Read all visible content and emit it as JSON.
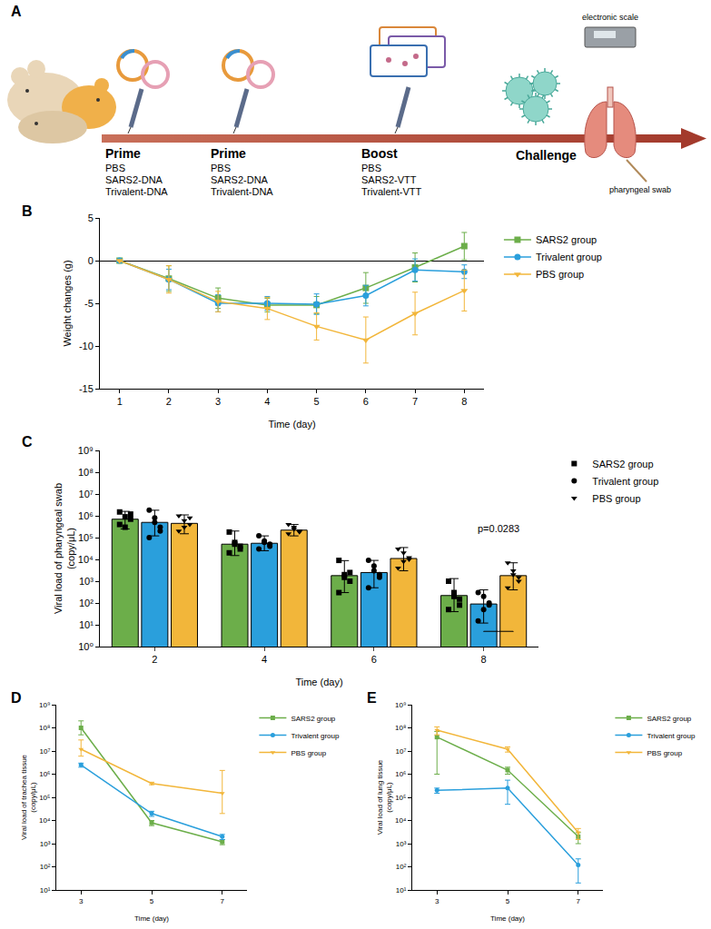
{
  "diagram": {
    "panel": "A",
    "steps": [
      {
        "label": "Prime",
        "groups": [
          "PBS",
          "SARS2-DNA",
          "Trivalent-DNA"
        ]
      },
      {
        "label": "Prime",
        "groups": [
          "PBS",
          "SARS2-DNA",
          "Trivalent-DNA"
        ]
      },
      {
        "label": "Boost",
        "groups": [
          "PBS",
          "SARS2-VTT",
          "Trivalent-VTT"
        ]
      }
    ],
    "challenge": "Challenge",
    "readouts": [
      "electronic scale",
      "pharyngeal swab"
    ]
  },
  "chart_data": [
    {
      "panel": "B",
      "type": "line",
      "x_label": "Time (day)",
      "y_label": "Weight changes (g)",
      "x": [
        1,
        2,
        3,
        4,
        5,
        6,
        7,
        8
      ],
      "xlim": [
        0.6,
        8.4
      ],
      "xticks": [
        1,
        2,
        3,
        4,
        5,
        6,
        7,
        8
      ],
      "ylim": [
        -15,
        5
      ],
      "yticks": [
        -15,
        -10,
        -5,
        0,
        5
      ],
      "grid": false,
      "legend": "right",
      "series": [
        {
          "name": "SARS2 group",
          "color": "#6cae4a",
          "marker": "square",
          "values": [
            0,
            -2.1,
            -4.4,
            -5.2,
            -5.2,
            -3.2,
            -0.8,
            1.7
          ],
          "errors": [
            0,
            1.5,
            1.2,
            0.8,
            1.0,
            1.8,
            1.7,
            1.6
          ]
        },
        {
          "name": "Trivalent group",
          "color": "#2a9fdc",
          "marker": "circle",
          "values": [
            0,
            -2.2,
            -5.0,
            -5.0,
            -5.1,
            -4.1,
            -1.1,
            -1.3
          ],
          "errors": [
            0,
            1.2,
            1.0,
            0.8,
            1.2,
            1.2,
            1.3,
            0.8
          ]
        },
        {
          "name": "PBS group",
          "color": "#f2b63a",
          "marker": "triangle-down",
          "values": [
            0,
            -2.2,
            -4.8,
            -5.6,
            -7.7,
            -9.3,
            -6.2,
            -3.5
          ],
          "errors": [
            0,
            1.6,
            1.2,
            1.3,
            1.6,
            2.7,
            2.5,
            2.4
          ]
        }
      ]
    },
    {
      "panel": "C",
      "type": "bar",
      "x_label": "Time (day)",
      "y_label": "Viral load of pharyngeal swab (copy/μL)",
      "categories": [
        "2",
        "4",
        "6",
        "8"
      ],
      "log": "y",
      "ylim": [
        1,
        1000000000
      ],
      "yticks": [
        {
          "value": 1,
          "label": "10⁰"
        },
        {
          "value": 10,
          "label": "10¹"
        },
        {
          "value": 100,
          "label": "10²"
        },
        {
          "value": 1000,
          "label": "10³"
        },
        {
          "value": 10000,
          "label": "10⁴"
        },
        {
          "value": 100000,
          "label": "10⁵"
        },
        {
          "value": 1000000,
          "label": "10⁶"
        },
        {
          "value": 10000000,
          "label": "10⁷"
        },
        {
          "value": 100000000,
          "label": "10⁸"
        },
        {
          "value": 1000000000,
          "label": "10⁹"
        }
      ],
      "grid": false,
      "legend": "right",
      "series": [
        {
          "name": "SARS2 group",
          "color": "#6cae4a",
          "marker": "square",
          "values": [
            700000,
            50000,
            1800,
            220
          ],
          "error_plus": [
            900000,
            150000,
            7000,
            1100
          ],
          "error_minus": [
            450000,
            35000,
            1500,
            180
          ],
          "points": [
            [
              1500000,
              900000,
              700000,
              400000,
              300000,
              1200000
            ],
            [
              180000,
              50000,
              30000,
              20000,
              60000,
              40000
            ],
            [
              9000,
              2000,
              1000,
              300,
              1500,
              2500
            ],
            [
              1000,
              300,
              150,
              50,
              200,
              80
            ]
          ]
        },
        {
          "name": "Trivalent group",
          "color": "#2a9fdc",
          "marker": "circle",
          "values": [
            500000,
            55000,
            2500,
            90
          ],
          "error_plus": [
            1300000,
            65000,
            6500,
            310
          ],
          "error_minus": [
            380000,
            30000,
            2000,
            78
          ],
          "points": [
            [
              1800000,
              800000,
              300000,
              100000,
              500000,
              200000
            ],
            [
              120000,
              70000,
              50000,
              30000,
              60000,
              40000
            ],
            [
              9000,
              5000,
              2000,
              500,
              3000,
              1500
            ],
            [
              300,
              200,
              100,
              15,
              50,
              80
            ]
          ]
        },
        {
          "name": "PBS group",
          "color": "#f2b63a",
          "marker": "triangle-down",
          "values": [
            450000,
            220000,
            11000,
            1800
          ],
          "error_plus": [
            650000,
            180000,
            24000,
            5200
          ],
          "error_minus": [
            300000,
            100000,
            8000,
            1400
          ],
          "points": [
            [
              1000000,
              600000,
              400000,
              200000,
              300000,
              800000
            ],
            [
              400000,
              300000,
              200000,
              150000,
              250000,
              180000
            ],
            [
              30000,
              20000,
              10000,
              4000,
              8000,
              12000
            ],
            [
              7000,
              3000,
              1500,
              500,
              2000,
              1000
            ]
          ]
        }
      ],
      "annotations": [
        {
          "text": "p=0.0283",
          "category": "8",
          "between": [
            "Trivalent group",
            "PBS group"
          ],
          "y": 100000
        }
      ]
    },
    {
      "panel": "D",
      "type": "line",
      "x_label": "Time (day)",
      "y_label": "Viral load of trachea tissue (copy/μL)",
      "x": [
        3,
        5,
        7
      ],
      "xlim": [
        2.3,
        7.7
      ],
      "xticks": [
        3,
        5,
        7
      ],
      "log": "y",
      "ylim": [
        10,
        1000000000
      ],
      "yticks": [
        {
          "value": 10,
          "label": "10¹"
        },
        {
          "value": 100,
          "label": "10²"
        },
        {
          "value": 1000,
          "label": "10³"
        },
        {
          "value": 10000,
          "label": "10⁴"
        },
        {
          "value": 100000,
          "label": "10⁵"
        },
        {
          "value": 1000000,
          "label": "10⁶"
        },
        {
          "value": 10000000,
          "label": "10⁷"
        },
        {
          "value": 100000000,
          "label": "10⁸"
        },
        {
          "value": 1000000000,
          "label": "10⁹"
        }
      ],
      "grid": false,
      "legend": "right",
      "series": [
        {
          "name": "SARS2 group",
          "color": "#6cae4a",
          "marker": "square",
          "values": [
            100000000,
            8000,
            1200
          ],
          "error_plus": [
            100000000,
            2000,
            300
          ],
          "error_minus": [
            50000000,
            2000,
            300
          ]
        },
        {
          "name": "Trivalent group",
          "color": "#2a9fdc",
          "marker": "circle",
          "values": [
            2500000,
            20000,
            2000
          ],
          "error_plus": [
            500000,
            5000,
            500
          ],
          "error_minus": [
            500000,
            5000,
            500
          ]
        },
        {
          "name": "PBS group",
          "color": "#f2b63a",
          "marker": "triangle-down",
          "values": [
            12000000,
            400000,
            150000
          ],
          "error_plus": [
            18000000,
            50000,
            1300000
          ],
          "error_minus": [
            6000000,
            50000,
            130000
          ]
        }
      ]
    },
    {
      "panel": "E",
      "type": "line",
      "x_label": "Time (day)",
      "y_label": "Viral load of lung tissue (copy/μL)",
      "x": [
        3,
        5,
        7
      ],
      "xlim": [
        2.3,
        7.7
      ],
      "xticks": [
        3,
        5,
        7
      ],
      "log": "y",
      "ylim": [
        10,
        1000000000
      ],
      "yticks": [
        {
          "value": 10,
          "label": "10¹"
        },
        {
          "value": 100,
          "label": "10²"
        },
        {
          "value": 1000,
          "label": "10³"
        },
        {
          "value": 10000,
          "label": "10⁴"
        },
        {
          "value": 100000,
          "label": "10⁵"
        },
        {
          "value": 1000000,
          "label": "10⁶"
        },
        {
          "value": 10000000,
          "label": "10⁷"
        },
        {
          "value": 100000000,
          "label": "10⁸"
        },
        {
          "value": 1000000000,
          "label": "10⁹"
        }
      ],
      "grid": false,
      "legend": "right",
      "series": [
        {
          "name": "SARS2 group",
          "color": "#6cae4a",
          "marker": "square",
          "values": [
            40000000,
            1500000,
            2000
          ],
          "error_plus": [
            30000000,
            500000,
            1000
          ],
          "error_minus": [
            39000000,
            500000,
            1000
          ]
        },
        {
          "name": "Trivalent group",
          "color": "#2a9fdc",
          "marker": "circle",
          "values": [
            200000,
            250000,
            120
          ],
          "error_plus": [
            50000,
            300000,
            100
          ],
          "error_minus": [
            50000,
            200000,
            100
          ]
        },
        {
          "name": "PBS group",
          "color": "#f2b63a",
          "marker": "triangle-down",
          "values": [
            80000000,
            12000000,
            3000
          ],
          "error_plus": [
            30000000,
            3000000,
            1500
          ],
          "error_minus": [
            30000000,
            3000000,
            1500
          ]
        }
      ]
    }
  ]
}
